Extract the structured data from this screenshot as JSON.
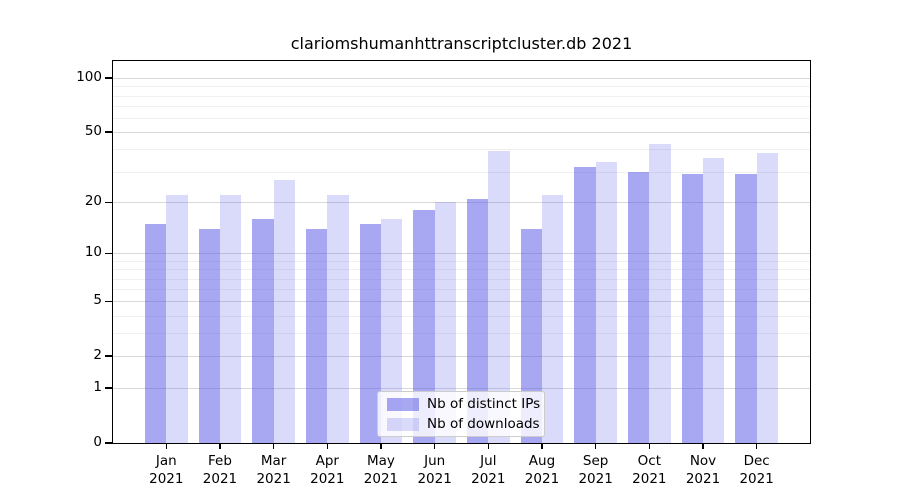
{
  "title": "clariomshumanhttranscriptcluster.db 2021",
  "chart_data": {
    "type": "bar",
    "title": "clariomshumanhttranscriptcluster.db 2021",
    "categories": [
      "Jan",
      "Feb",
      "Mar",
      "Apr",
      "May",
      "Jun",
      "Jul",
      "Aug",
      "Sep",
      "Oct",
      "Nov",
      "Dec"
    ],
    "category_year": "2021",
    "series": [
      {
        "name": "Nb of distinct IPs",
        "values": [
          15,
          14,
          16,
          14,
          15,
          18,
          21,
          14,
          32,
          30,
          29,
          29
        ],
        "color": "rgba(80,80,230,0.5)"
      },
      {
        "name": "Nb of downloads",
        "values": [
          22,
          22,
          27,
          22,
          16,
          20,
          39,
          22,
          34,
          43,
          36,
          38
        ],
        "color": "rgba(80,80,230,0.21)"
      }
    ],
    "y_scale": "log1p",
    "ylabel": "",
    "xlabel": "",
    "ylim": [
      0,
      126
    ],
    "y_axis_ticks": {
      "labels": [
        "100",
        "50",
        "20",
        "10",
        "5",
        "2",
        "1",
        "0"
      ],
      "values": [
        100,
        50,
        20,
        10,
        5,
        2,
        1,
        0
      ]
    },
    "y_minor_gridlines": [
      3,
      4,
      6,
      7,
      8,
      9,
      30,
      40,
      60,
      70,
      80,
      90
    ],
    "grid": "horizontal",
    "legend_position": "lower-center"
  },
  "legend": {
    "items": [
      {
        "label": "Nb of distinct IPs"
      },
      {
        "label": "Nb of downloads"
      }
    ]
  },
  "colors": {
    "bar_distinct_ips": "rgba(80,80,230,0.5)",
    "bar_downloads": "rgba(80,80,230,0.21)",
    "gridline_major": "#d9d9d9",
    "gridline_minor": "#f0f0f0",
    "axis": "#000000",
    "background": "#ffffff",
    "legend_border": "#cccccc"
  }
}
